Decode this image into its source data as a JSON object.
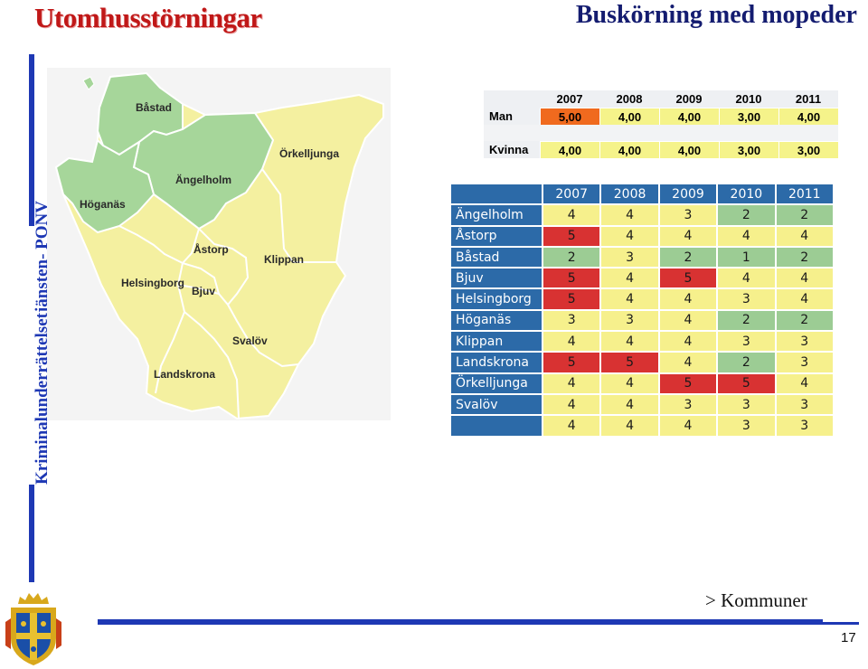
{
  "header": {
    "title": "Utomhusstörningar",
    "subtitle": "Buskörning med mopeder"
  },
  "sidebar": {
    "vertical_text": "Kriminalunderrättelsetjänsten- PONV"
  },
  "map": {
    "labels": [
      "Båstad",
      "Örkelljunga",
      "Ängelholm",
      "Höganäs",
      "Åstorp",
      "Klippan",
      "Helsingborg",
      "Bjuv",
      "Svalöv",
      "Landskrona"
    ]
  },
  "gender_table": {
    "years": [
      "2007",
      "2008",
      "2009",
      "2010",
      "2011"
    ],
    "rows": [
      {
        "label": "Man",
        "values": [
          "5,00",
          "4,00",
          "4,00",
          "3,00",
          "4,00"
        ],
        "highlight": [
          true,
          false,
          false,
          false,
          false
        ]
      },
      {
        "label": "Kvinna",
        "values": [
          "4,00",
          "4,00",
          "4,00",
          "3,00",
          "3,00"
        ],
        "highlight": [
          false,
          false,
          false,
          false,
          false
        ]
      }
    ]
  },
  "municipal_table": {
    "years": [
      "2007",
      "2008",
      "2009",
      "2010",
      "2011"
    ],
    "rows": [
      {
        "name": "Ängelholm",
        "values": [
          "4",
          "4",
          "3",
          "2",
          "2"
        ],
        "colors": [
          "y",
          "y",
          "y",
          "g",
          "g"
        ]
      },
      {
        "name": "Åstorp",
        "values": [
          "5",
          "4",
          "4",
          "4",
          "4"
        ],
        "colors": [
          "r",
          "y",
          "y",
          "y",
          "y"
        ]
      },
      {
        "name": "Båstad",
        "values": [
          "2",
          "3",
          "2",
          "1",
          "2"
        ],
        "colors": [
          "g",
          "y",
          "g",
          "g",
          "g"
        ]
      },
      {
        "name": "Bjuv",
        "values": [
          "5",
          "4",
          "5",
          "4",
          "4"
        ],
        "colors": [
          "r",
          "y",
          "r",
          "y",
          "y"
        ]
      },
      {
        "name": "Helsingborg",
        "values": [
          "5",
          "4",
          "4",
          "3",
          "4"
        ],
        "colors": [
          "r",
          "y",
          "y",
          "y",
          "y"
        ]
      },
      {
        "name": "Höganäs",
        "values": [
          "3",
          "3",
          "4",
          "2",
          "2"
        ],
        "colors": [
          "y",
          "y",
          "y",
          "g",
          "g"
        ]
      },
      {
        "name": "Klippan",
        "values": [
          "4",
          "4",
          "4",
          "3",
          "3"
        ],
        "colors": [
          "y",
          "y",
          "y",
          "y",
          "y"
        ]
      },
      {
        "name": "Landskrona",
        "values": [
          "5",
          "5",
          "4",
          "2",
          "3"
        ],
        "colors": [
          "r",
          "r",
          "y",
          "g",
          "y"
        ]
      },
      {
        "name": "Örkelljunga",
        "values": [
          "4",
          "4",
          "5",
          "5",
          "4"
        ],
        "colors": [
          "y",
          "y",
          "r",
          "r",
          "y"
        ]
      },
      {
        "name": "Svalöv",
        "values": [
          "4",
          "4",
          "3",
          "3",
          "3"
        ],
        "colors": [
          "y",
          "y",
          "y",
          "y",
          "y"
        ]
      },
      {
        "name": "",
        "values": [
          "4",
          "4",
          "4",
          "3",
          "3"
        ],
        "colors": [
          "y",
          "y",
          "y",
          "y",
          "y"
        ]
      }
    ]
  },
  "footer": {
    "link_text": "> Kommuner",
    "page_number": "17"
  },
  "colors": {
    "title_red": "#c01818",
    "navy": "#141c70",
    "accent_blue": "#1e38b4",
    "table_blue": "#2c6aa8",
    "cell_yellow": "#f6f08c",
    "cell_red": "#d83232",
    "cell_green": "#9ccc94",
    "highlight_orange": "#f06a1e",
    "map_yellow": "#f4f0a0",
    "map_green": "#a6d69a"
  }
}
